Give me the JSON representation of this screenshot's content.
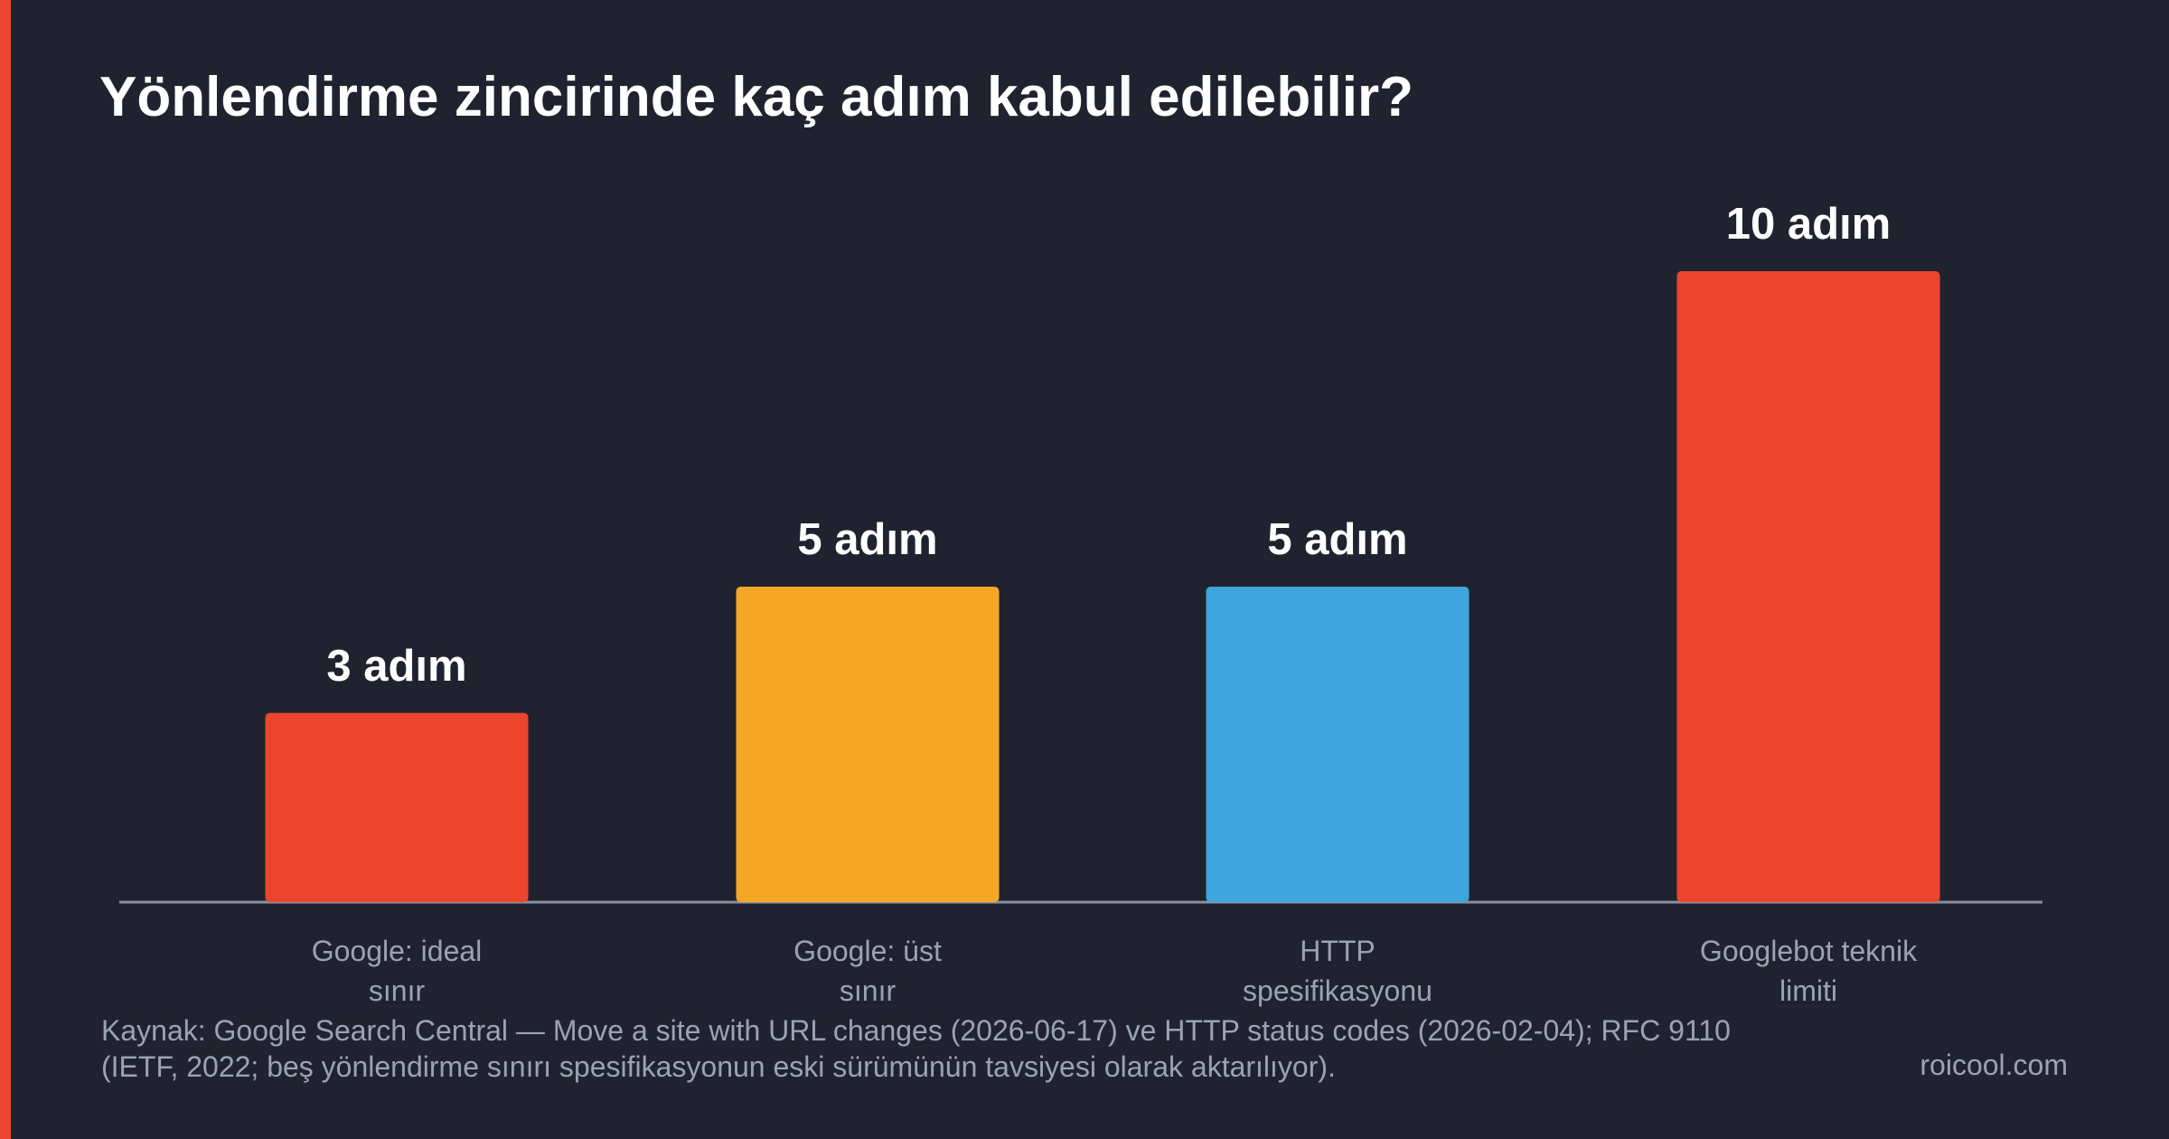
{
  "chart_data": {
    "type": "bar",
    "title": "Yönlendirme zincirinde kaç adım kabul edilebilir?",
    "categories": [
      "Google: ideal\nsınır",
      "Google: üst\nsınır",
      "HTTP\nspesifikasyonu",
      "Googlebot teknik\nlimiti"
    ],
    "values": [
      3,
      5,
      5,
      10
    ],
    "value_labels": [
      "3 adım",
      "5 adım",
      "5 adım",
      "10 adım"
    ],
    "colors": [
      "#ec452f",
      "#f4a726",
      "#3ea6dc",
      "#ec452f"
    ],
    "source": "Kaynak: Google Search Central — Move a site with URL changes (2026-06-17) ve HTTP status codes (2026-02-04); RFC 9110\n(IETF, 2022; beş yönlendirme sınırı spesifikasyonun eski sürümünün tavsiyesi olarak aktarılıyor).",
    "brand": "roicool.com"
  }
}
